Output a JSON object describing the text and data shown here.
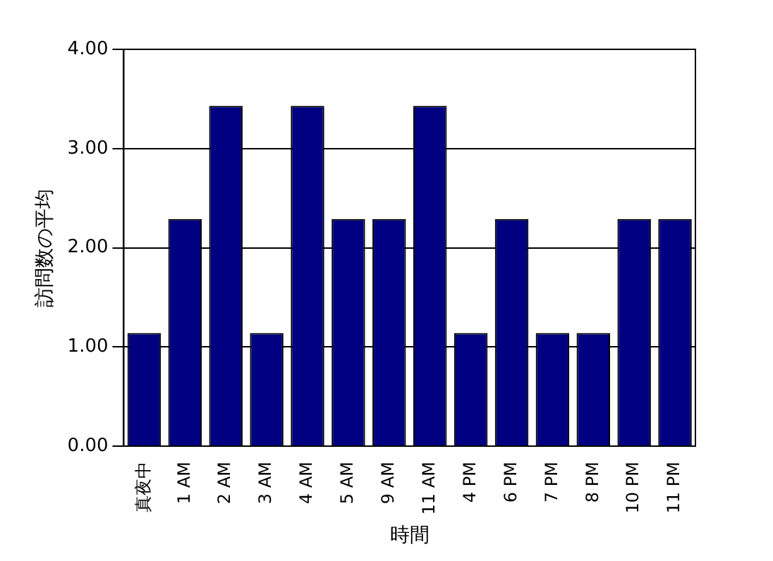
{
  "chart_data": {
    "type": "bar",
    "xlabel": "時間",
    "ylabel": "訪問数の平均",
    "categories": [
      "真夜中",
      "1 AM",
      "2 AM",
      "3 AM",
      "4 AM",
      "5 AM",
      "9 AM",
      "11 AM",
      "4 PM",
      "6 PM",
      "7 PM",
      "8 PM",
      "10 PM",
      "11 PM"
    ],
    "values": [
      1.14,
      2.29,
      3.43,
      1.14,
      3.43,
      2.29,
      2.29,
      3.43,
      1.14,
      2.29,
      1.14,
      1.14,
      2.29,
      2.29
    ],
    "color": "#000080",
    "ylim": [
      0,
      4
    ],
    "yticks": [
      {
        "value": 0,
        "label": "0.00"
      },
      {
        "value": 1,
        "label": "1.00"
      },
      {
        "value": 2,
        "label": "2.00"
      },
      {
        "value": 3,
        "label": "3.00"
      },
      {
        "value": 4,
        "label": "4.00"
      }
    ],
    "grid": "y",
    "legend": false
  }
}
